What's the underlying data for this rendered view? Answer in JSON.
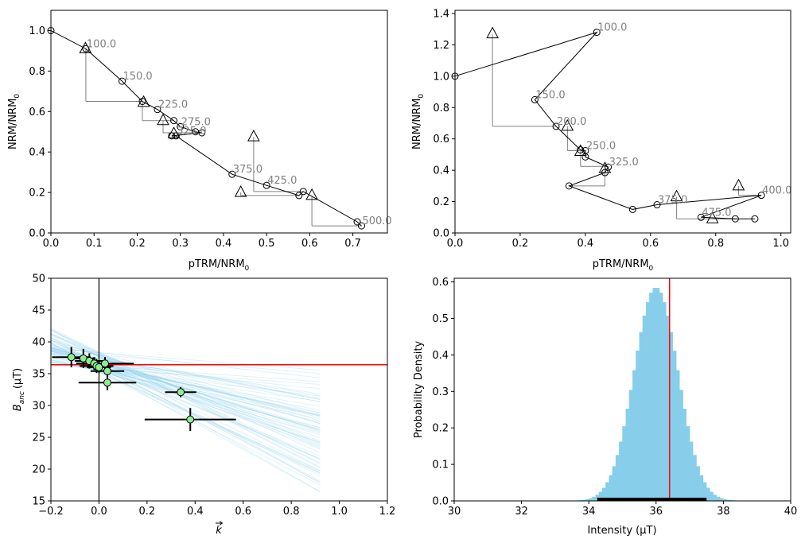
{
  "chart_data": [
    {
      "id": "p1",
      "type": "line",
      "xlabel": "pTRM/NRM",
      "xlabel_sub": "0",
      "ylabel": "NRM/NRM",
      "ylabel_sub": "0",
      "xlim": [
        0,
        0.78
      ],
      "ylim": [
        0,
        1.1
      ],
      "xticks": [
        0.0,
        0.1,
        0.2,
        0.3,
        0.4,
        0.5,
        0.6,
        0.7
      ],
      "yticks": [
        0.0,
        0.2,
        0.4,
        0.6,
        0.8,
        1.0
      ],
      "xtick_labels": [
        "0.0",
        "0.1",
        "0.2",
        "0.3",
        "0.4",
        "0.5",
        "0.6",
        "0.7"
      ],
      "ytick_labels": [
        "0.0",
        "0.2",
        "0.4",
        "0.6",
        "0.8",
        "1.0"
      ],
      "series_path": [
        [
          0.0,
          1.0
        ],
        [
          0.081,
          0.91
        ],
        [
          0.165,
          0.75
        ],
        [
          0.212,
          0.65
        ],
        [
          0.247,
          0.61
        ],
        [
          0.285,
          0.555
        ],
        [
          0.3,
          0.525
        ],
        [
          0.335,
          0.5
        ],
        [
          0.35,
          0.495
        ],
        [
          0.28,
          0.48
        ],
        [
          0.29,
          0.48
        ],
        [
          0.42,
          0.29
        ],
        [
          0.5,
          0.235
        ],
        [
          0.575,
          0.185
        ],
        [
          0.585,
          0.205
        ],
        [
          0.71,
          0.055
        ],
        [
          0.72,
          0.035
        ]
      ],
      "checks": [
        {
          "x": 0.08,
          "y": 0.91,
          "from": [
            0.081,
            0.91
          ],
          "to": [
            0.081,
            0.65
          ]
        },
        {
          "x": 0.215,
          "y": 0.645,
          "from": [
            0.212,
            0.645
          ],
          "to": [
            0.212,
            0.555
          ]
        },
        {
          "x": 0.26,
          "y": 0.555,
          "from": [
            0.26,
            0.555
          ],
          "to": [
            0.26,
            0.495
          ]
        },
        {
          "x": 0.285,
          "y": 0.49,
          "from": [
            0.285,
            0.49
          ],
          "to": [
            0.285,
            0.48
          ]
        },
        {
          "x": 0.47,
          "y": 0.475,
          "from": [
            0.47,
            0.475
          ],
          "to": [
            0.47,
            0.205
          ]
        },
        {
          "x": 0.44,
          "y": 0.2,
          "from": [
            0.44,
            0.2
          ],
          "to": [
            0.44,
            0.185
          ]
        },
        {
          "x": 0.605,
          "y": 0.185,
          "from": [
            0.605,
            0.185
          ],
          "to": [
            0.605,
            0.035
          ]
        }
      ],
      "labels": [
        {
          "text": "100.0",
          "x": 0.081,
          "y": 0.91
        },
        {
          "text": "150.0",
          "x": 0.165,
          "y": 0.75
        },
        {
          "text": "225.0",
          "x": 0.247,
          "y": 0.61
        },
        {
          "text": "275.0",
          "x": 0.3,
          "y": 0.525
        },
        {
          "text": "325.0",
          "x": 0.29,
          "y": 0.48
        },
        {
          "text": "375.0",
          "x": 0.42,
          "y": 0.29
        },
        {
          "text": "425.0",
          "x": 0.5,
          "y": 0.235
        },
        {
          "text": "500.0",
          "x": 0.72,
          "y": 0.035
        }
      ]
    },
    {
      "id": "p2",
      "type": "line",
      "xlabel": "pTRM/NRM",
      "xlabel_sub": "0",
      "ylabel": "NRM/NRM",
      "ylabel_sub": "0",
      "xlim": [
        0,
        1.03
      ],
      "ylim": [
        0,
        1.42
      ],
      "xticks": [
        0.0,
        0.2,
        0.4,
        0.6,
        0.8,
        1.0
      ],
      "yticks": [
        0.0,
        0.2,
        0.4,
        0.6,
        0.8,
        1.0,
        1.2,
        1.4
      ],
      "xtick_labels": [
        "0.0",
        "0.2",
        "0.4",
        "0.6",
        "0.8",
        "1.0"
      ],
      "ytick_labels": [
        "0.0",
        "0.2",
        "0.4",
        "0.6",
        "0.8",
        "1.0",
        "1.2",
        "1.4"
      ],
      "series_path": [
        [
          0.0,
          1.0
        ],
        [
          0.435,
          1.28
        ],
        [
          0.245,
          0.85
        ],
        [
          0.31,
          0.68
        ],
        [
          0.385,
          0.53
        ],
        [
          0.4,
          0.525
        ],
        [
          0.4,
          0.485
        ],
        [
          0.47,
          0.42
        ],
        [
          0.46,
          0.385
        ],
        [
          0.35,
          0.3
        ],
        [
          0.545,
          0.15
        ],
        [
          0.62,
          0.18
        ],
        [
          0.94,
          0.24
        ],
        [
          0.755,
          0.1
        ],
        [
          0.86,
          0.09
        ],
        [
          0.92,
          0.09
        ]
      ],
      "checks": [
        {
          "x": 0.115,
          "y": 1.27,
          "from": [
            0.115,
            1.27
          ],
          "to": [
            0.115,
            0.68
          ]
        },
        {
          "x": 0.345,
          "y": 0.68,
          "from": [
            0.345,
            0.68
          ],
          "to": [
            0.345,
            0.525
          ]
        },
        {
          "x": 0.385,
          "y": 0.52,
          "from": [
            0.385,
            0.52
          ],
          "to": [
            0.385,
            0.425
          ]
        },
        {
          "x": 0.46,
          "y": 0.41,
          "from": [
            0.46,
            0.41
          ],
          "to": [
            0.46,
            0.3
          ]
        },
        {
          "x": 0.68,
          "y": 0.23,
          "from": [
            0.68,
            0.23
          ],
          "to": [
            0.68,
            0.09
          ]
        },
        {
          "x": 0.87,
          "y": 0.3,
          "from": [
            0.87,
            0.3
          ],
          "to": [
            0.87,
            0.24
          ]
        },
        {
          "x": 0.79,
          "y": 0.09,
          "from": [
            0.79,
            0.09
          ],
          "to": [
            0.79,
            0.09
          ]
        }
      ],
      "labels": [
        {
          "text": "100.0",
          "x": 0.435,
          "y": 1.28
        },
        {
          "text": "150.0",
          "x": 0.245,
          "y": 0.85
        },
        {
          "text": "200.0",
          "x": 0.31,
          "y": 0.68
        },
        {
          "text": "250.0",
          "x": 0.4,
          "y": 0.525
        },
        {
          "text": "325.0",
          "x": 0.47,
          "y": 0.42
        },
        {
          "text": "375.0",
          "x": 0.62,
          "y": 0.18
        },
        {
          "text": "400.0",
          "x": 0.94,
          "y": 0.24
        },
        {
          "text": "475.0",
          "x": 0.755,
          "y": 0.1
        }
      ]
    },
    {
      "id": "p3",
      "type": "scatter",
      "xlabel": "k",
      "ylabel": "B",
      "ylabel_sub": "anc",
      "ylabel_unit": "(μT)",
      "xlim": [
        -0.2,
        1.2
      ],
      "ylim": [
        15,
        50
      ],
      "xticks": [
        -0.2,
        0.0,
        0.2,
        0.4,
        0.6,
        0.8,
        1.0,
        1.2
      ],
      "yticks": [
        15,
        20,
        25,
        30,
        35,
        40,
        45,
        50
      ],
      "xtick_labels": [
        "−0.2",
        "0.0",
        "0.2",
        "0.4",
        "0.6",
        "0.8",
        "1.0",
        "1.2"
      ],
      "ytick_labels": [
        "15",
        "20",
        "25",
        "30",
        "35",
        "40",
        "45",
        "50"
      ],
      "hline": 36.4,
      "vline": 0.0,
      "fan_x_end": 0.92,
      "fan_lines": {
        "count": 70,
        "intercept_center": 36.8,
        "intercept_spread": 1.6,
        "slope_min": -22,
        "slope_max": -2
      },
      "points": [
        {
          "x": -0.115,
          "y": 37.6,
          "xerr": 0.08,
          "yerr": 1.6
        },
        {
          "x": -0.065,
          "y": 37.4,
          "xerr": 0.05,
          "yerr": 1.5
        },
        {
          "x": -0.04,
          "y": 37.0,
          "xerr": 0.06,
          "yerr": 1.2
        },
        {
          "x": -0.02,
          "y": 36.6,
          "xerr": 0.05,
          "yerr": 1.0
        },
        {
          "x": -0.01,
          "y": 36.2,
          "xerr": 0.07,
          "yerr": 1.1
        },
        {
          "x": 0.0,
          "y": 36.0,
          "xerr": 0.05,
          "yerr": 0.9
        },
        {
          "x": 0.025,
          "y": 36.6,
          "xerr": 0.12,
          "yerr": 1.0
        },
        {
          "x": 0.035,
          "y": 35.4,
          "xerr": 0.07,
          "yerr": 1.2
        },
        {
          "x": 0.035,
          "y": 33.6,
          "xerr": 0.12,
          "yerr": 1.2
        },
        {
          "x": 0.34,
          "y": 32.1,
          "xerr": 0.065,
          "yerr": 0.8
        },
        {
          "x": 0.38,
          "y": 27.8,
          "xerr": 0.19,
          "yerr": 1.8
        }
      ]
    },
    {
      "id": "p4",
      "type": "bar",
      "xlabel": "Intensity (μT)",
      "ylabel": "Probability Density",
      "xlim": [
        30,
        40
      ],
      "ylim": [
        0,
        0.61
      ],
      "xticks": [
        30,
        32,
        34,
        36,
        38,
        40
      ],
      "yticks": [
        0.0,
        0.1,
        0.2,
        0.3,
        0.4,
        0.5,
        0.6
      ],
      "xtick_labels": [
        "30",
        "32",
        "34",
        "36",
        "38",
        "40"
      ],
      "ytick_labels": [
        "0.0",
        "0.1",
        "0.2",
        "0.3",
        "0.4",
        "0.5",
        "0.6"
      ],
      "hist": {
        "bin_start": 32.4,
        "bin_width": 0.1,
        "mean": 36.0,
        "sd": 0.655,
        "peak": 0.585
      },
      "vline": 36.4,
      "interval": [
        34.25,
        37.5
      ]
    }
  ],
  "colors": {
    "accent_blue": "#87ceeb",
    "red_line": "#ff0000",
    "point_fill": "#90ee90",
    "label_gray": "#808080",
    "check_gray": "#808080"
  }
}
